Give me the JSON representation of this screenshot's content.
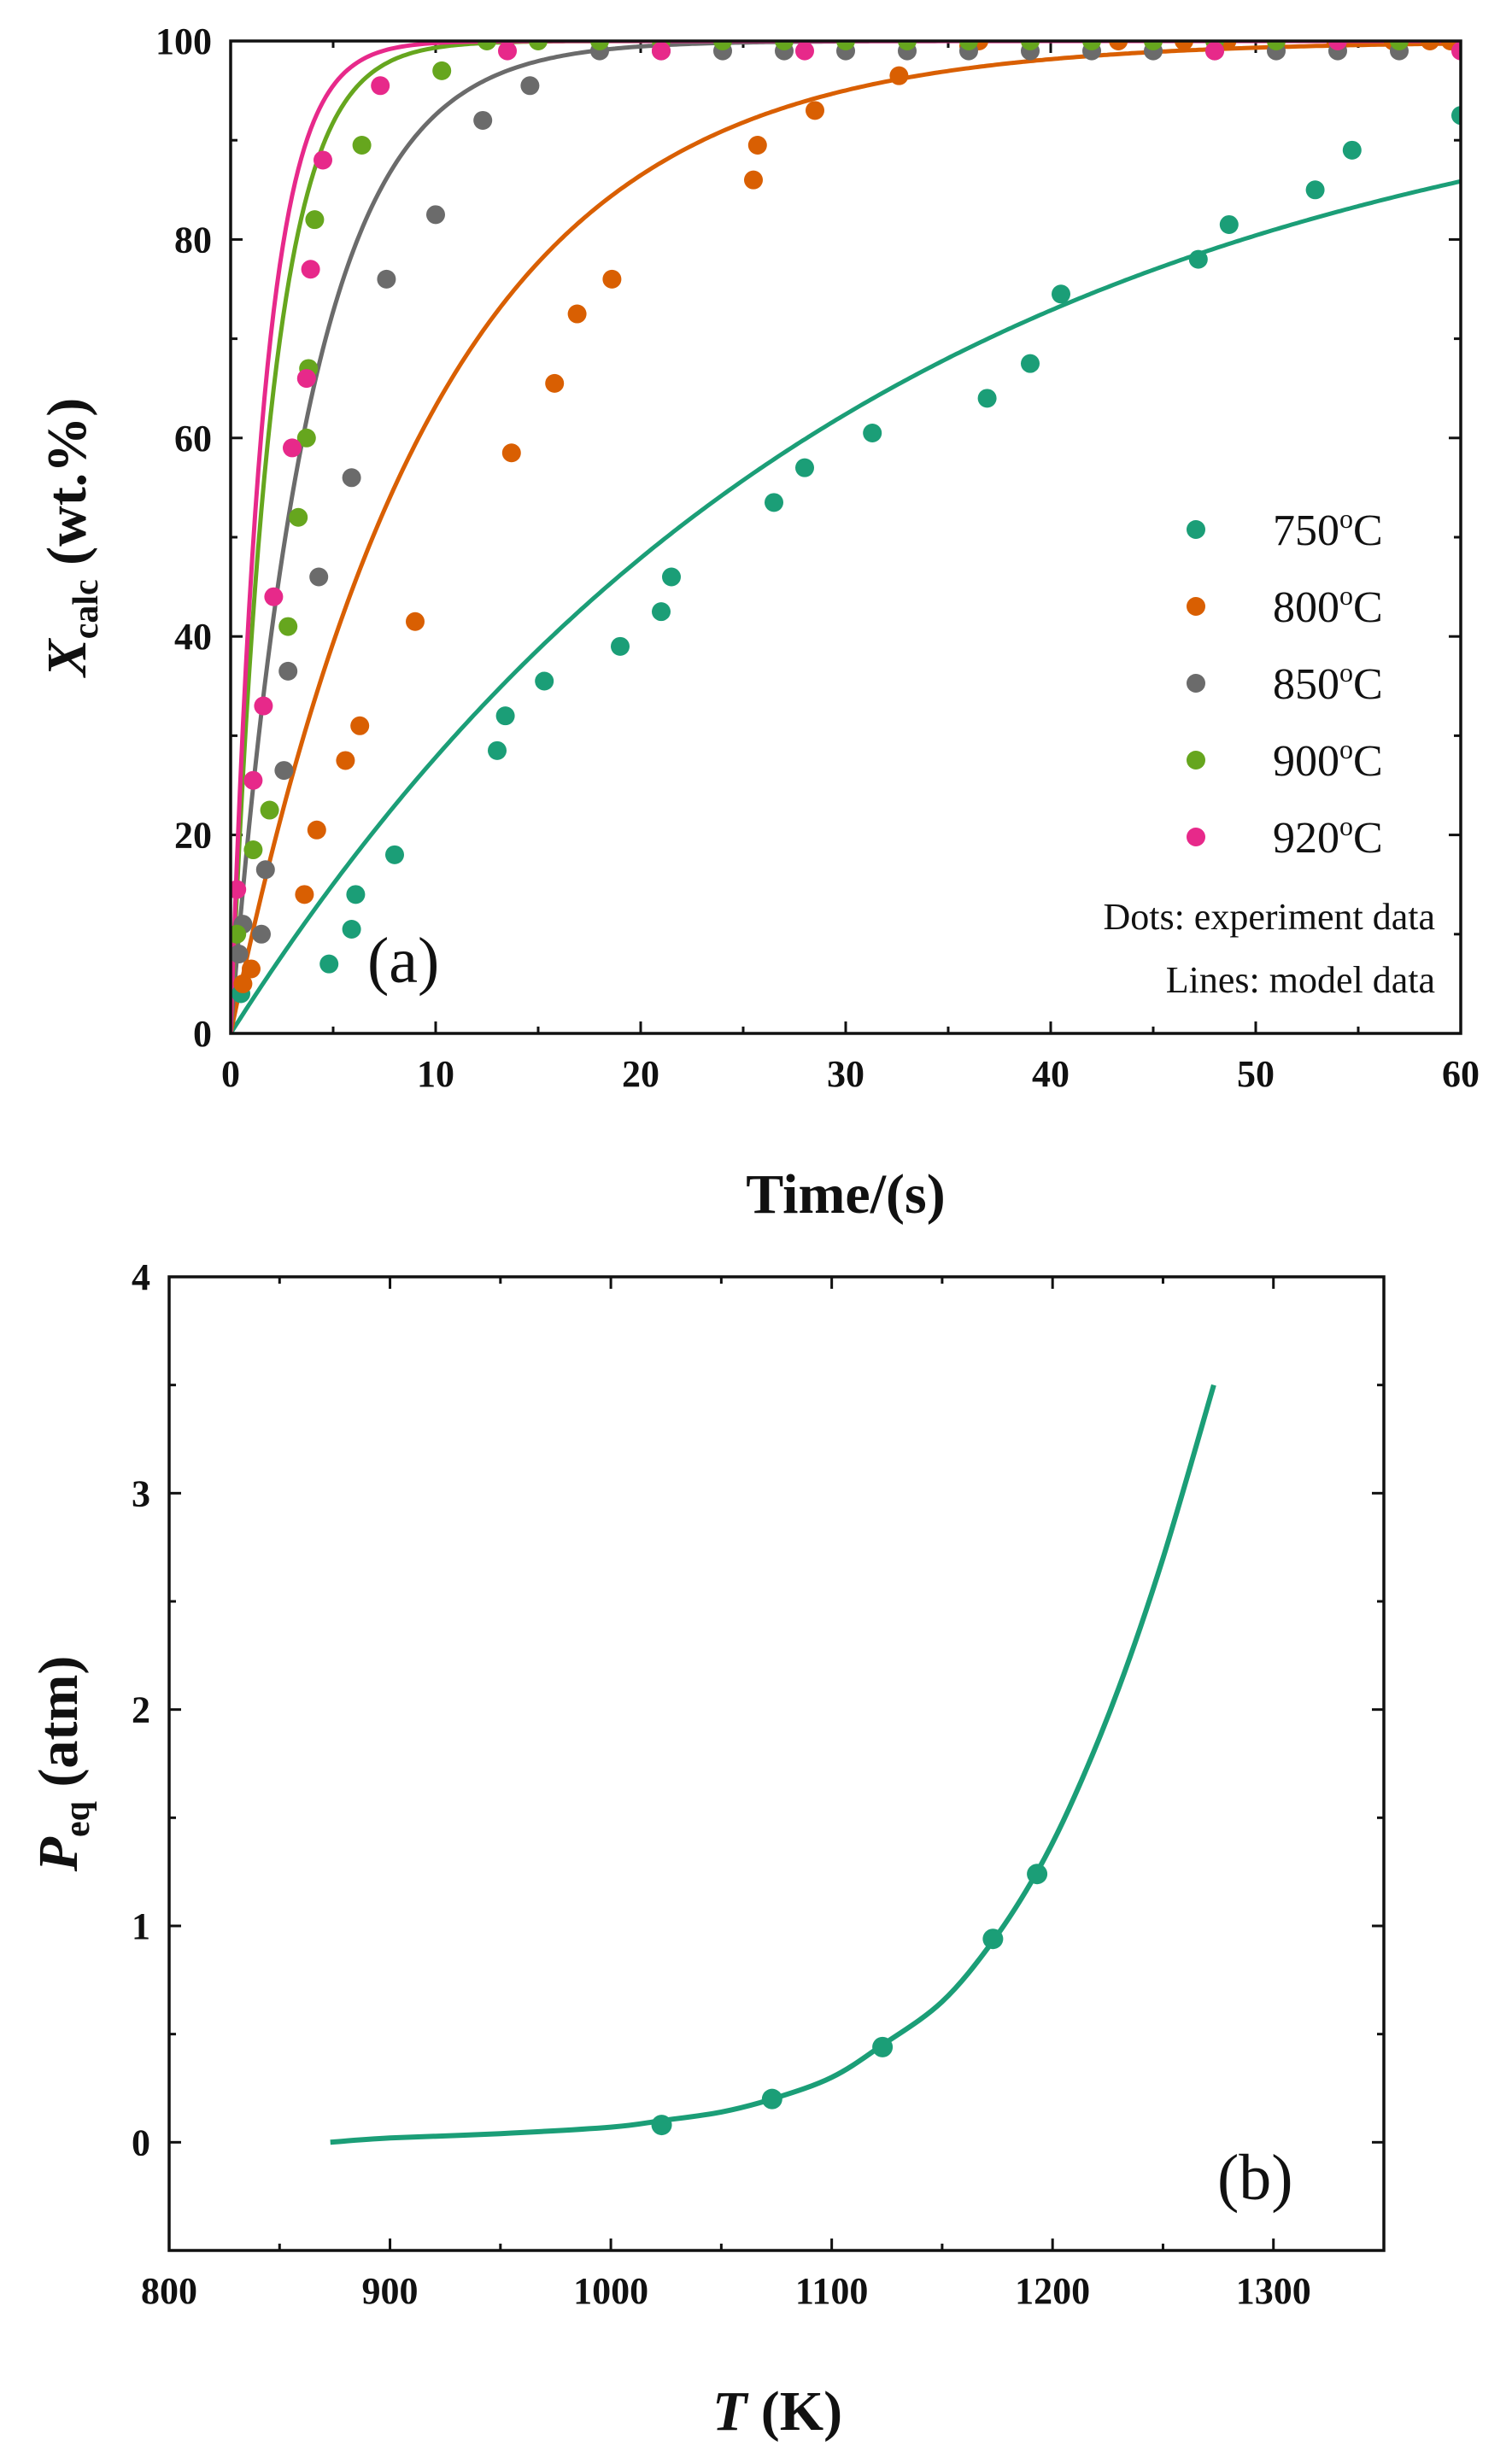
{
  "colors": {
    "750": "#1b9e77",
    "800": "#d95f02",
    "850": "#6b6b6b",
    "900": "#66a61e",
    "920": "#e7298a",
    "peq": "#1b9e77"
  },
  "chart_data": [
    {
      "type": "scatter+line",
      "panel_label": "(a)",
      "xlabel": "Time/(s)",
      "ylabel_main": "X",
      "ylabel_sub": "calc",
      "ylabel_rest": " (wt.%)",
      "xlim": [
        0,
        60
      ],
      "ylim": [
        0,
        100
      ],
      "xticks": [
        0,
        10,
        20,
        30,
        40,
        50,
        60
      ],
      "yticks": [
        0,
        20,
        40,
        60,
        80,
        100
      ],
      "notes": [
        "Dots: experiment data",
        "Lines: model data"
      ],
      "series": [
        {
          "name": "750",
          "legend_value": "750",
          "legend_unit": "C",
          "model_k": 0.0326,
          "points": [
            [
              0.5,
              4
            ],
            [
              4.8,
              7
            ],
            [
              5.9,
              10.5
            ],
            [
              6.1,
              14
            ],
            [
              8,
              18
            ],
            [
              13,
              28.5
            ],
            [
              13.4,
              32
            ],
            [
              15.3,
              35.5
            ],
            [
              19,
              39
            ],
            [
              21,
              42.5
            ],
            [
              21.5,
              46
            ],
            [
              26.5,
              53.5
            ],
            [
              28,
              57
            ],
            [
              31.3,
              60.5
            ],
            [
              36.9,
              64
            ],
            [
              39,
              67.5
            ],
            [
              40.5,
              74.5
            ],
            [
              47.2,
              78
            ],
            [
              48.7,
              81.5
            ],
            [
              52.9,
              85
            ],
            [
              54.7,
              89
            ],
            [
              60,
              92.5
            ]
          ]
        },
        {
          "name": "800",
          "legend_value": "800",
          "legend_unit": "C",
          "model_k": 0.1,
          "points": [
            [
              0.6,
              5
            ],
            [
              1,
              6.5
            ],
            [
              3.6,
              14
            ],
            [
              4.2,
              20.5
            ],
            [
              5.6,
              27.5
            ],
            [
              6.3,
              31
            ],
            [
              9,
              41.5
            ],
            [
              13.7,
              58.5
            ],
            [
              15.8,
              65.5
            ],
            [
              16.9,
              72.5
            ],
            [
              18.6,
              76
            ],
            [
              25.5,
              86
            ],
            [
              25.7,
              89.5
            ],
            [
              28.5,
              93
            ],
            [
              32.6,
              96.5
            ],
            [
              36,
              99.5
            ],
            [
              36.5,
              100
            ],
            [
              39,
              100
            ],
            [
              43.3,
              100
            ],
            [
              45,
              100
            ],
            [
              46.5,
              100
            ],
            [
              48.6,
              100
            ],
            [
              51,
              100
            ],
            [
              53.9,
              100
            ],
            [
              56.7,
              100
            ],
            [
              58.5,
              100
            ],
            [
              59.5,
              100
            ]
          ]
        },
        {
          "name": "850",
          "legend_value": "850",
          "legend_unit": "C",
          "model_k": 0.26,
          "points": [
            [
              0.4,
              8
            ],
            [
              0.6,
              11
            ],
            [
              1.5,
              10
            ],
            [
              1.7,
              16.5
            ],
            [
              2.6,
              26.5
            ],
            [
              2.8,
              36.5
            ],
            [
              4.3,
              46
            ],
            [
              5.9,
              56
            ],
            [
              7.6,
              76
            ],
            [
              10,
              82.5
            ],
            [
              12.3,
              92
            ],
            [
              14.6,
              95.5
            ],
            [
              18,
              99
            ],
            [
              21,
              99
            ],
            [
              24,
              99
            ],
            [
              27,
              99
            ],
            [
              30,
              99
            ],
            [
              33,
              99
            ],
            [
              36,
              99
            ],
            [
              39,
              99
            ],
            [
              42,
              99
            ],
            [
              45,
              99
            ],
            [
              48,
              99
            ],
            [
              51,
              99
            ],
            [
              54,
              99
            ],
            [
              57,
              99
            ]
          ]
        },
        {
          "name": "900",
          "legend_value": "900",
          "legend_unit": "C",
          "model_k": 0.5,
          "points": [
            [
              0.3,
              10
            ],
            [
              1.1,
              18.5
            ],
            [
              1.9,
              22.5
            ],
            [
              2.8,
              41
            ],
            [
              3.3,
              52
            ],
            [
              3.7,
              60
            ],
            [
              3.8,
              67
            ],
            [
              4.1,
              82
            ],
            [
              6.4,
              89.5
            ],
            [
              10.3,
              97
            ],
            [
              12.5,
              100
            ],
            [
              15,
              100
            ],
            [
              18,
              100
            ],
            [
              21,
              100
            ],
            [
              24,
              100
            ],
            [
              27,
              100
            ],
            [
              30,
              100
            ],
            [
              33,
              100
            ],
            [
              36,
              100
            ],
            [
              39,
              100
            ],
            [
              42,
              100
            ],
            [
              45,
              100
            ],
            [
              48,
              100
            ],
            [
              51,
              100
            ],
            [
              54,
              100
            ],
            [
              57,
              100
            ]
          ]
        },
        {
          "name": "920",
          "legend_value": "920",
          "legend_unit": "C",
          "model_k": 0.62,
          "points": [
            [
              0.3,
              14.5
            ],
            [
              1.1,
              25.5
            ],
            [
              1.6,
              33
            ],
            [
              2.1,
              44
            ],
            [
              3,
              59
            ],
            [
              3.7,
              66
            ],
            [
              3.9,
              77
            ],
            [
              4.5,
              88
            ],
            [
              7.3,
              95.5
            ],
            [
              13.5,
              99
            ],
            [
              21,
              99
            ],
            [
              28,
              99
            ],
            [
              48,
              99
            ],
            [
              54,
              100
            ],
            [
              60,
              99
            ]
          ]
        }
      ]
    },
    {
      "type": "scatter+line",
      "panel_label": "(b)",
      "xlabel_main": "T",
      "xlabel_rest": " (K)",
      "ylabel_main": "P",
      "ylabel_sub": "eq",
      "ylabel_rest": " (atm)",
      "xlim": [
        800,
        1350
      ],
      "ylim": [
        -0.5,
        4
      ],
      "xticks": [
        800,
        900,
        1000,
        1100,
        1200,
        1300
      ],
      "yticks": [
        0,
        1,
        2,
        3,
        4
      ],
      "curve": {
        "name": "P_eq model",
        "x": [
          873,
          900,
          950,
          1000,
          1023,
          1050,
          1073,
          1100,
          1123,
          1150,
          1173,
          1193,
          1210,
          1230,
          1250,
          1273
        ],
        "y": [
          0.0,
          0.02,
          0.04,
          0.07,
          0.1,
          0.14,
          0.2,
          0.3,
          0.45,
          0.65,
          0.93,
          1.25,
          1.6,
          2.1,
          2.7,
          3.5
        ]
      },
      "points": [
        [
          1023,
          0.08
        ],
        [
          1073,
          0.2
        ],
        [
          1123,
          0.44
        ],
        [
          1173,
          0.94
        ],
        [
          1193,
          1.24
        ]
      ]
    }
  ]
}
